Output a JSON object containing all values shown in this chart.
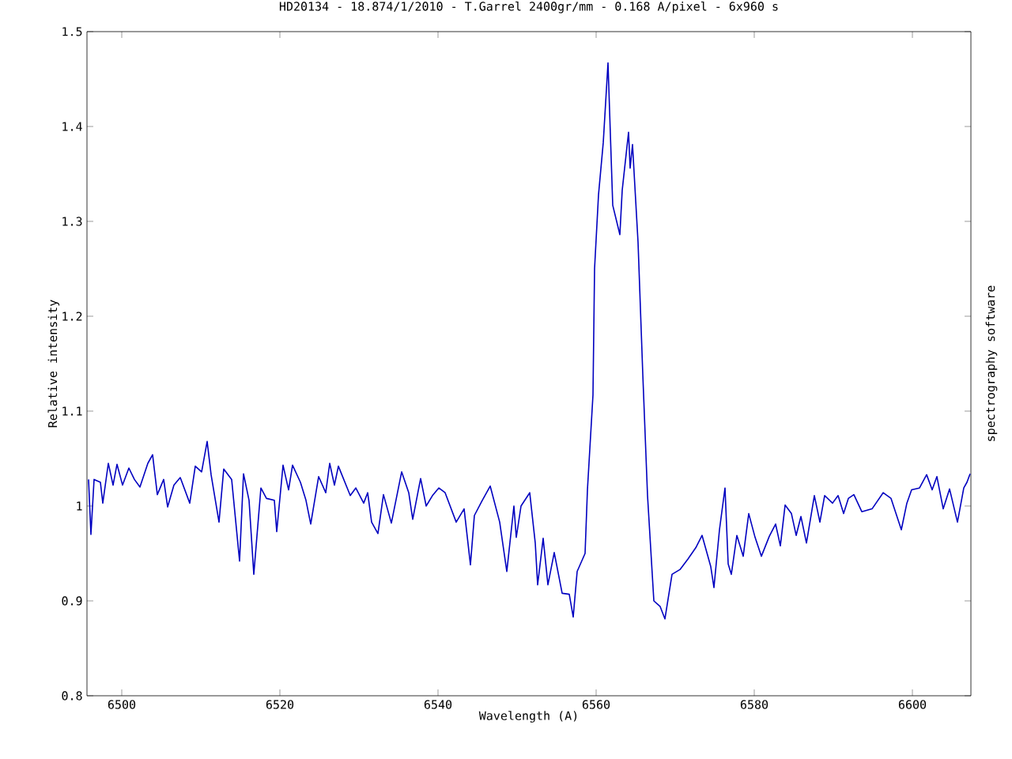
{
  "chart_data": {
    "type": "line",
    "title": "HD20134 - 18.874/1/2010 - T.Garrel 2400gr/mm - 0.168 A/pixel - 6x960 s",
    "xlabel": "Wavelength (A)",
    "ylabel": "Relative intensity",
    "annotations": [
      "spectrography software"
    ],
    "xlim": [
      6495.6,
      6607.4
    ],
    "ylim": [
      0.8,
      1.5
    ],
    "xticks": [
      6500,
      6520,
      6540,
      6560,
      6580,
      6600
    ],
    "yticks": [
      0.8,
      0.9,
      1,
      1.1,
      1.2,
      1.3,
      1.4,
      1.5
    ],
    "series": [
      {
        "color": "#0000c0",
        "x": [
          6495.8,
          6496.1,
          6496.5,
          6497.3,
          6497.6,
          6498.3,
          6498.9,
          6499.4,
          6500.1,
          6500.9,
          6501.6,
          6502.3,
          6503.3,
          6503.9,
          6504.5,
          6505.3,
          6505.8,
          6506.6,
          6507.4,
          6508.6,
          6509.3,
          6510.1,
          6510.8,
          6511.3,
          6512.3,
          6512.9,
          6513.9,
          6514.9,
          6515.4,
          6516.1,
          6516.7,
          6517.6,
          6518.3,
          6519.3,
          6519.6,
          6520.4,
          6521.1,
          6521.6,
          6522.6,
          6523.3,
          6523.9,
          6524.9,
          6525.8,
          6526.3,
          6526.9,
          6527.4,
          6528.9,
          6529.6,
          6530.6,
          6531.1,
          6531.6,
          6532.4,
          6533.1,
          6534.1,
          6535.4,
          6536.3,
          6536.8,
          6537.8,
          6538.5,
          6539.3,
          6540.1,
          6540.9,
          6542.3,
          6543.3,
          6544.1,
          6544.6,
          6545.6,
          6546.6,
          6547.8,
          6548.7,
          6549.6,
          6549.9,
          6550.5,
          6551.6,
          6552.3,
          6552.6,
          6553.3,
          6553.9,
          6554.7,
          6555.7,
          6556.6,
          6557.1,
          6557.6,
          6558.6,
          6558.9,
          6559.6,
          6559.8,
          6560.3,
          6560.9,
          6561.5,
          6562.1,
          6563.0,
          6563.3,
          6564.1,
          6564.3,
          6564.6,
          6565.3,
          6565.9,
          6566.5,
          6567.3,
          6568.1,
          6568.7,
          6569.6,
          6570.6,
          6571.6,
          6572.6,
          6573.4,
          6574.5,
          6574.9,
          6575.6,
          6576.3,
          6576.7,
          6577.1,
          6577.8,
          6578.6,
          6579.3,
          6580.1,
          6580.9,
          6581.9,
          6582.7,
          6583.3,
          6583.9,
          6584.7,
          6585.3,
          6585.9,
          6586.6,
          6587.6,
          6588.3,
          6588.9,
          6589.9,
          6590.6,
          6591.3,
          6591.9,
          6592.6,
          6593.6,
          6594.9,
          6596.3,
          6597.3,
          6598.6,
          6599.3,
          6599.9,
          6600.9,
          6601.8,
          6602.5,
          6603.1,
          6603.9,
          6604.7,
          6605.7,
          6606.5,
          6606.9,
          6607.3
        ],
        "values": [
          1.028,
          0.97,
          1.028,
          1.025,
          1.003,
          1.045,
          1.022,
          1.044,
          1.022,
          1.04,
          1.028,
          1.02,
          1.045,
          1.054,
          1.012,
          1.028,
          0.999,
          1.022,
          1.03,
          1.003,
          1.042,
          1.036,
          1.068,
          1.033,
          0.983,
          1.039,
          1.028,
          0.942,
          1.034,
          1.006,
          0.928,
          1.019,
          1.008,
          1.006,
          0.973,
          1.043,
          1.017,
          1.043,
          1.025,
          1.006,
          0.981,
          1.031,
          1.014,
          1.045,
          1.022,
          1.042,
          1.011,
          1.019,
          1.003,
          1.014,
          0.983,
          0.971,
          1.012,
          0.982,
          1.036,
          1.014,
          0.986,
          1.029,
          1.0,
          1.011,
          1.019,
          1.014,
          0.983,
          0.997,
          0.938,
          0.99,
          1.006,
          1.021,
          0.983,
          0.931,
          1.0,
          0.967,
          1.0,
          1.014,
          0.961,
          0.917,
          0.966,
          0.917,
          0.951,
          0.908,
          0.907,
          0.883,
          0.931,
          0.95,
          1.017,
          1.117,
          1.25,
          1.328,
          1.383,
          1.467,
          1.317,
          1.286,
          1.333,
          1.394,
          1.356,
          1.381,
          1.278,
          1.139,
          1.011,
          0.9,
          0.894,
          0.881,
          0.928,
          0.933,
          0.944,
          0.956,
          0.969,
          0.936,
          0.914,
          0.975,
          1.019,
          0.939,
          0.928,
          0.969,
          0.947,
          0.992,
          0.967,
          0.947,
          0.968,
          0.981,
          0.958,
          1.001,
          0.992,
          0.969,
          0.989,
          0.961,
          1.011,
          0.983,
          1.011,
          1.003,
          1.011,
          0.992,
          1.008,
          1.012,
          0.994,
          0.997,
          1.014,
          1.008,
          0.975,
          1.003,
          1.017,
          1.019,
          1.033,
          1.017,
          1.031,
          0.997,
          1.018,
          0.983,
          1.019,
          1.025,
          1.034
        ]
      }
    ]
  }
}
